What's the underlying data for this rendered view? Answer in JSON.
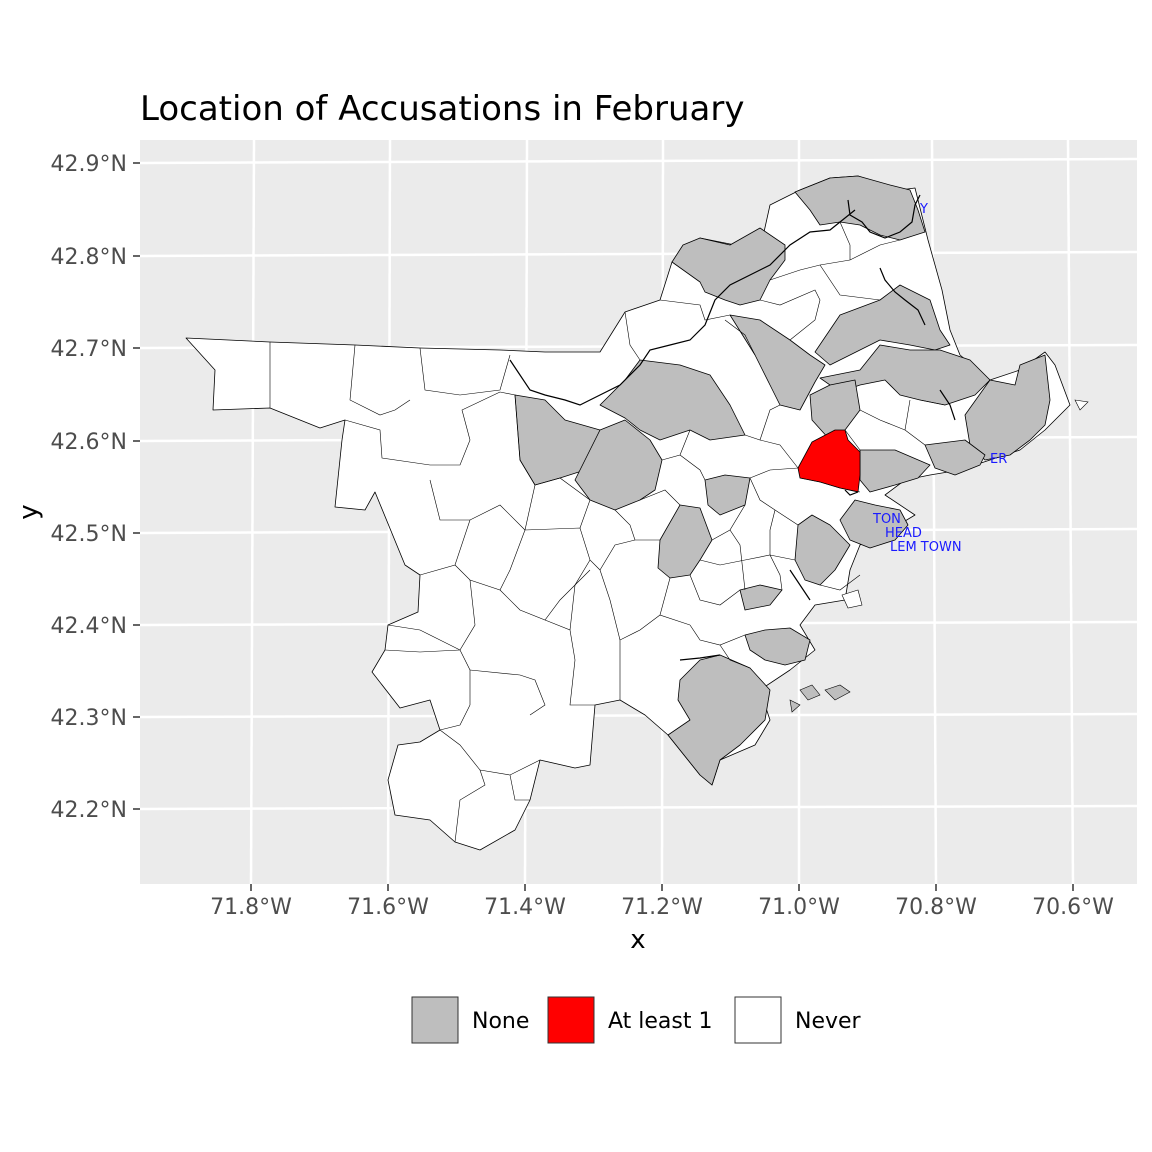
{
  "title": "Location of Accusations in February",
  "axes": {
    "x_title": "x",
    "y_title": "y",
    "x_ticks": [
      "71.8°W",
      "71.6°W",
      "71.4°W",
      "71.2°W",
      "71.0°W",
      "70.8°W",
      "70.6°W"
    ],
    "y_ticks": [
      "42.9°N",
      "42.8°N",
      "42.7°N",
      "42.6°N",
      "42.5°N",
      "42.4°N",
      "42.3°N",
      "42.2°N"
    ]
  },
  "legend": {
    "position": "bottom",
    "items": [
      {
        "label": "None",
        "color": "#bebebe"
      },
      {
        "label": "At least 1",
        "color": "#ff0000"
      },
      {
        "label": "Never",
        "color": "#ffffff"
      }
    ]
  },
  "town_labels": [
    "Y",
    "ER",
    "TON",
    "HEAD",
    "LEM TOWN"
  ],
  "colors": {
    "panel_background": "#ebebeb",
    "grid": "#ffffff",
    "none": "#bebebe",
    "at_least_1": "#ff0000",
    "never": "#ffffff",
    "label_text": "#1a1aff"
  }
}
